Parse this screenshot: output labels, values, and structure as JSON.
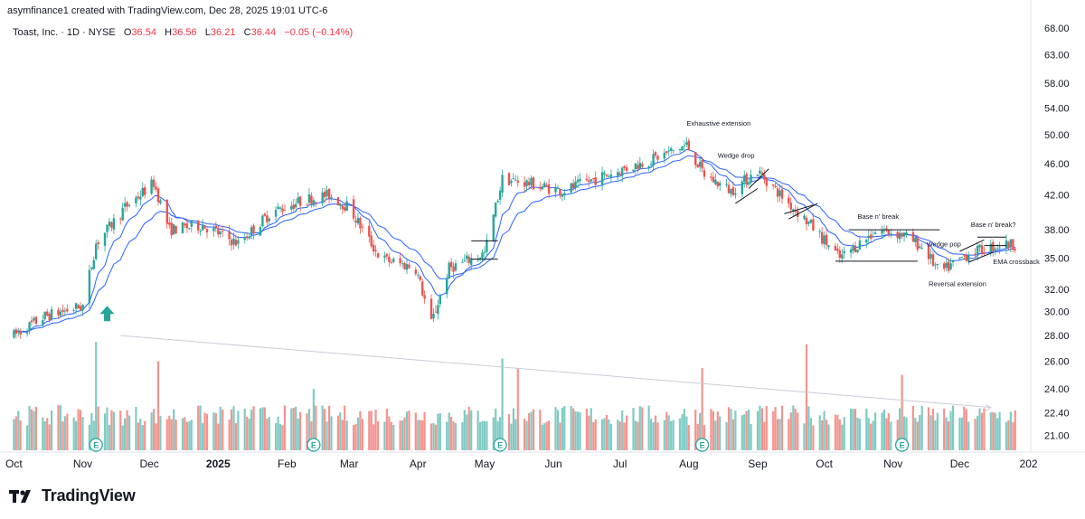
{
  "header": {
    "credit": "asymfinance1 created with TradingView.com, Dec 28, 2025 19:01 UTC-6"
  },
  "symbol_line": {
    "name": "Toast, Inc. · 1D · NYSE",
    "o_label": "O",
    "o_value": "36.54",
    "h_label": "H",
    "h_value": "36.56",
    "l_label": "L",
    "l_value": "36.21",
    "c_label": "C",
    "c_value": "36.44",
    "change": "−0.05 (−0.14%)"
  },
  "brand": {
    "name": "TradingView"
  },
  "colors": {
    "up": "#26a69a",
    "down": "#ef5350",
    "ema": "#2962ff",
    "vol_up": "#7fcbc3",
    "vol_down": "#f5938f",
    "axis_text": "#131722",
    "grid": "#f0f3fa"
  },
  "chart_data": {
    "type": "candlestick",
    "title": "Toast, Inc. · 1D · NYSE",
    "y_scale": "log",
    "ylim": [
      20,
      70
    ],
    "y_ticks": [
      "68.00",
      "63.00",
      "58.00",
      "54.00",
      "50.00",
      "46.00",
      "42.00",
      "38.00",
      "35.00",
      "32.00",
      "30.00",
      "28.00",
      "26.00",
      "24.00",
      "22.40",
      "21.00"
    ],
    "x_labels": [
      "Oct",
      "Nov",
      "Dec",
      "2025",
      "Feb",
      "Mar",
      "Apr",
      "May",
      "Jun",
      "Jul",
      "Aug",
      "Sep",
      "Oct",
      "Nov",
      "Dec",
      "202"
    ],
    "price_path": [
      [
        "2024-10-01",
        28.0
      ],
      [
        "2024-10-15",
        29.6
      ],
      [
        "2024-11-01",
        30.5
      ],
      [
        "2024-11-07",
        36.5
      ],
      [
        "2024-11-20",
        40.5
      ],
      [
        "2024-12-03",
        43.5
      ],
      [
        "2024-12-10",
        38.0
      ],
      [
        "2024-12-25",
        38.5
      ],
      [
        "2025-01-10",
        36.5
      ],
      [
        "2025-01-25",
        40.0
      ],
      [
        "2025-02-10",
        41.5
      ],
      [
        "2025-02-20",
        42.0
      ],
      [
        "2025-03-01",
        40.5
      ],
      [
        "2025-03-15",
        35.0
      ],
      [
        "2025-03-31",
        34.0
      ],
      [
        "2025-04-07",
        29.0
      ],
      [
        "2025-04-15",
        34.0
      ],
      [
        "2025-05-01",
        35.5
      ],
      [
        "2025-05-09",
        44.0
      ],
      [
        "2025-05-20",
        43.5
      ],
      [
        "2025-06-05",
        42.5
      ],
      [
        "2025-06-25",
        44.5
      ],
      [
        "2025-07-15",
        46.5
      ],
      [
        "2025-07-31",
        48.5
      ],
      [
        "2025-08-08",
        44.5
      ],
      [
        "2025-08-20",
        42.5
      ],
      [
        "2025-09-01",
        45.0
      ],
      [
        "2025-09-15",
        41.0
      ],
      [
        "2025-09-25",
        38.5
      ],
      [
        "2025-10-08",
        35.0
      ],
      [
        "2025-10-25",
        38.0
      ],
      [
        "2025-11-05",
        37.5
      ],
      [
        "2025-11-15",
        36.0
      ],
      [
        "2025-11-22",
        33.5
      ],
      [
        "2025-12-05",
        35.5
      ],
      [
        "2025-12-20",
        36.44
      ]
    ],
    "volume_peaks": [
      [
        "2024-11-07",
        27.5
      ],
      [
        "2024-12-05",
        26.0
      ],
      [
        "2025-02-13",
        24.0
      ],
      [
        "2025-05-09",
        26.2
      ],
      [
        "2025-05-16",
        25.5
      ],
      [
        "2025-08-07",
        25.5
      ],
      [
        "2025-09-23",
        27.3
      ],
      [
        "2025-11-05",
        25.0
      ]
    ],
    "ylabel_volume_axis_shared": true
  },
  "annotations": {
    "exhaustive": "Exhaustive extension",
    "wedge_drop": "Wedge drop",
    "base_break_1": "Base n' break",
    "base_break_2": "Base n' break?",
    "wedge_pop": "Wedge pop",
    "reversal": "Reversal extension",
    "ema_cross": "EMA crossback",
    "earnings_marker": "E"
  }
}
